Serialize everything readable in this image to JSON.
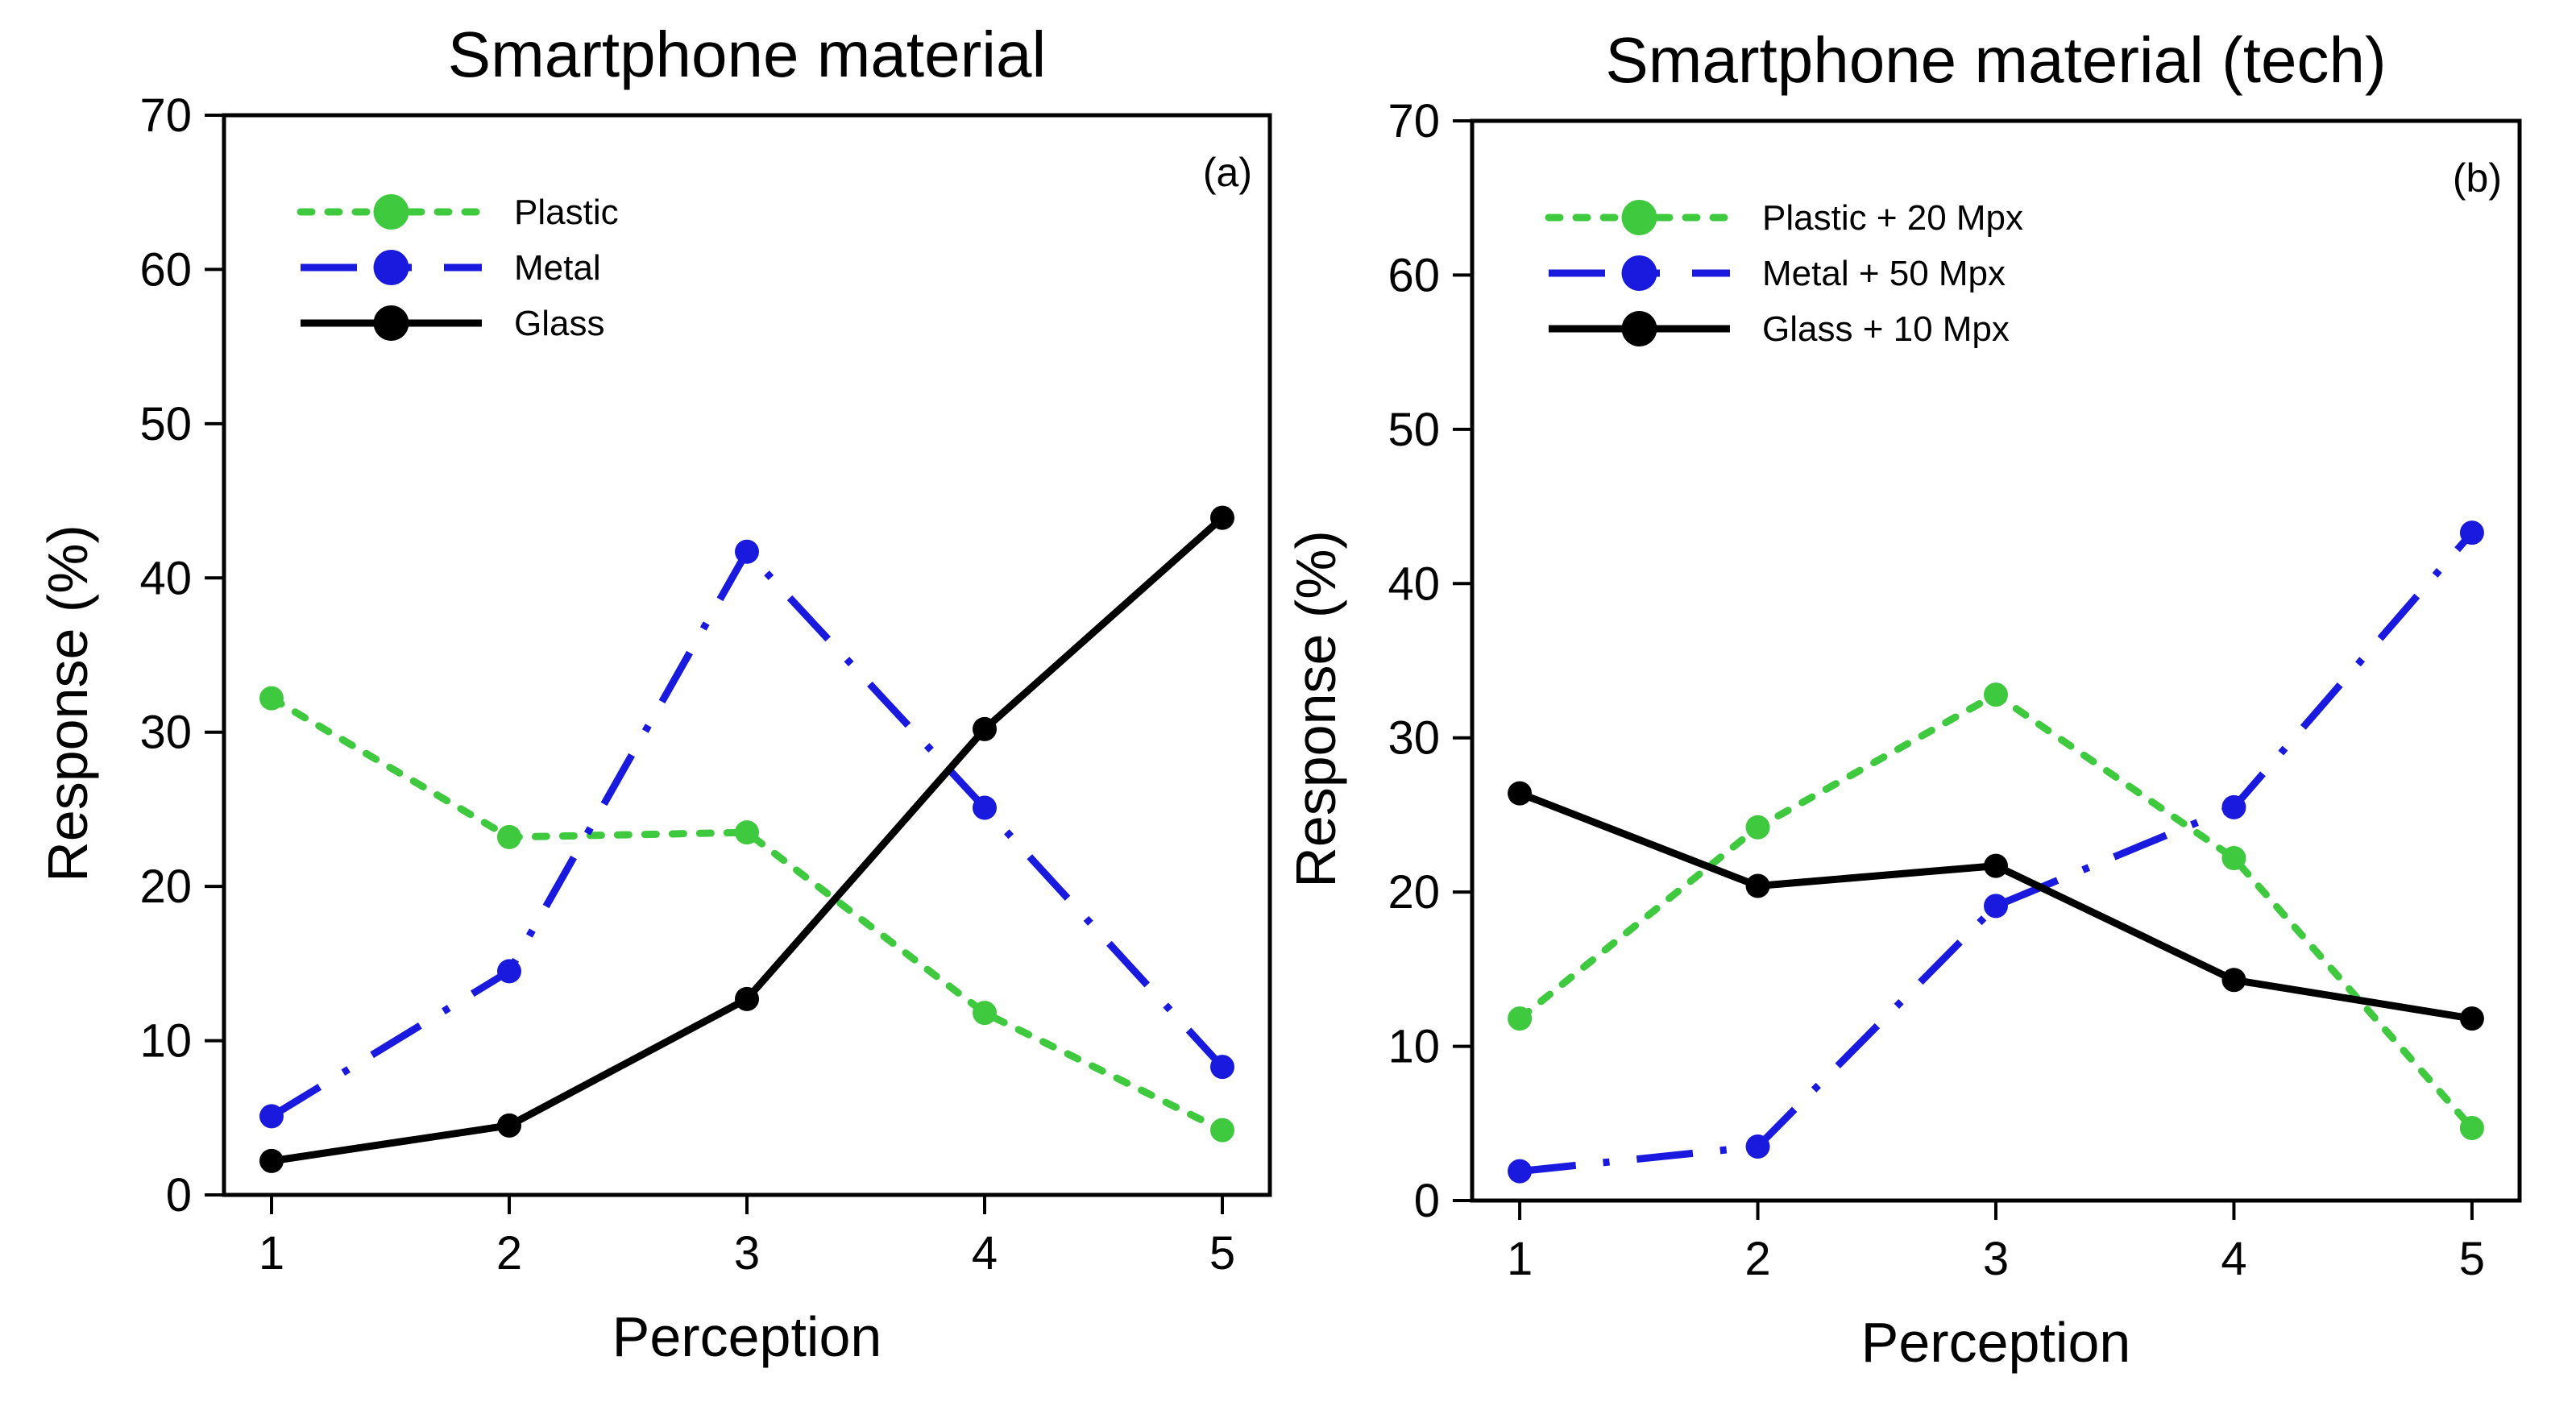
{
  "chart_data": [
    {
      "type": "line",
      "title": "Smartphone material",
      "panel_label": "(a)",
      "xlabel": "Perception",
      "ylabel": "Response (%)",
      "x": [
        1,
        2,
        3,
        4,
        5
      ],
      "x_ticks": [
        "1",
        "2",
        "3",
        "4",
        "5"
      ],
      "y_ticks": [
        "0",
        "10",
        "20",
        "30",
        "40",
        "50",
        "60",
        "70"
      ],
      "xlim": [
        0.8,
        5.2
      ],
      "ylim": [
        0,
        70
      ],
      "grid": false,
      "legend_position": "top-left",
      "series": [
        {
          "name": "Plastic",
          "color": "#3fc93f",
          "style": "dotted",
          "values": [
            32.2,
            23.2,
            23.5,
            11.8,
            4.2
          ]
        },
        {
          "name": "Metal",
          "color": "#1a1adf",
          "style": "dash-dot",
          "values": [
            5.1,
            14.5,
            41.7,
            25.1,
            8.3
          ]
        },
        {
          "name": "Glass",
          "color": "#000000",
          "style": "solid",
          "values": [
            2.2,
            4.5,
            12.7,
            30.2,
            43.9
          ]
        }
      ]
    },
    {
      "type": "line",
      "title": "Smartphone material (tech)",
      "panel_label": "(b)",
      "xlabel": "Perception",
      "ylabel": "Response (%)",
      "x": [
        1,
        2,
        3,
        4,
        5
      ],
      "x_ticks": [
        "1",
        "2",
        "3",
        "4",
        "5"
      ],
      "y_ticks": [
        "0",
        "10",
        "20",
        "30",
        "40",
        "50",
        "60",
        "70"
      ],
      "xlim": [
        0.8,
        5.2
      ],
      "ylim": [
        0,
        70
      ],
      "grid": false,
      "legend_position": "top-left",
      "series": [
        {
          "name": "Plastic + 20 Mpx",
          "color": "#3fc93f",
          "style": "dotted",
          "values": [
            11.8,
            24.2,
            32.8,
            22.2,
            4.7
          ]
        },
        {
          "name": "Metal + 50 Mpx",
          "color": "#1a1adf",
          "style": "dash-dot",
          "values": [
            1.9,
            3.5,
            19.1,
            25.5,
            43.3
          ]
        },
        {
          "name": "Glass + 10 Mpx",
          "color": "#000000",
          "style": "solid",
          "values": [
            26.4,
            20.4,
            21.7,
            14.3,
            11.8
          ]
        }
      ]
    }
  ]
}
